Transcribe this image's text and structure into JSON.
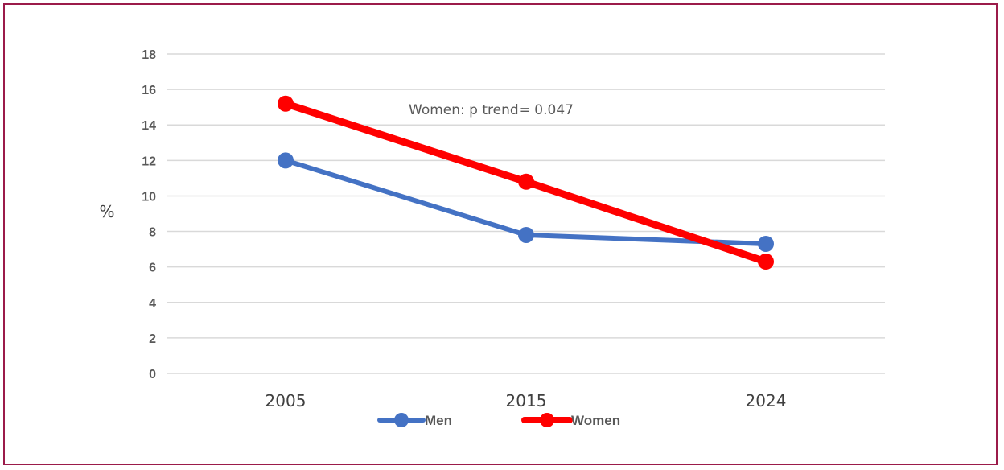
{
  "chart_data": {
    "type": "line",
    "title": "",
    "xlabel": "",
    "ylabel": "%",
    "categories": [
      "2005",
      "2015",
      "2024"
    ],
    "ylim": [
      0,
      18
    ],
    "yticks": [
      0,
      2,
      4,
      6,
      8,
      10,
      12,
      14,
      16,
      18
    ],
    "grid": true,
    "legend_position": "bottom",
    "series": [
      {
        "name": "Men",
        "values": [
          12.0,
          7.8,
          7.3
        ],
        "color": "#4472c4"
      },
      {
        "name": "Women",
        "values": [
          15.2,
          10.8,
          6.3
        ],
        "color": "#ff0000"
      }
    ],
    "annotations": [
      {
        "text": "Women: p trend= 0.047"
      }
    ]
  }
}
